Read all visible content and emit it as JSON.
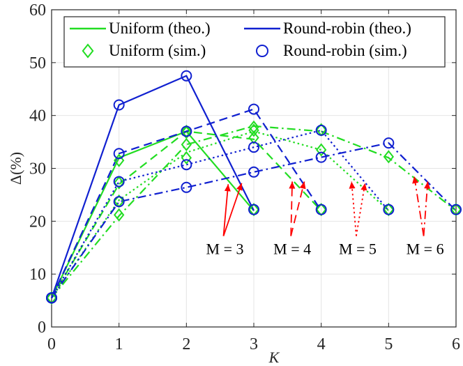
{
  "chart_data": {
    "type": "line",
    "xlabel": "K",
    "ylabel": "Δ(%)",
    "xlim": [
      0,
      6
    ],
    "ylim": [
      0,
      60
    ],
    "xticks": [
      "0",
      "1",
      "2",
      "3",
      "4",
      "5",
      "6"
    ],
    "yticks": [
      "0",
      "10",
      "20",
      "30",
      "40",
      "50",
      "60"
    ],
    "grid": true,
    "legend": {
      "placement": "top",
      "entries": [
        {
          "label": "Uniform (theo.)",
          "kind": "line",
          "color": "#22dd22"
        },
        {
          "label": "Round-robin (theo.)",
          "kind": "line",
          "color": "#1020d0"
        },
        {
          "label": "Uniform (sim.)",
          "kind": "diamond",
          "color": "#22dd22"
        },
        {
          "label": "Round-robin (sim.)",
          "kind": "circle",
          "color": "#1020d0"
        }
      ]
    },
    "series": [
      {
        "family": "uniform",
        "M": 3,
        "dash": "solid",
        "x": [
          0,
          1,
          2,
          3
        ],
        "theo": [
          5.5,
          32.0,
          37.0,
          22.0
        ],
        "sim": [
          5.5,
          31.5,
          36.8,
          22.2
        ]
      },
      {
        "family": "uniform",
        "M": 4,
        "dash": "dashed",
        "x": [
          0,
          1,
          2,
          3,
          4
        ],
        "theo": [
          5.5,
          27.0,
          37.0,
          35.5,
          22.0
        ],
        "sim": [
          5.5,
          27.3,
          37.0,
          35.8,
          22.2
        ]
      },
      {
        "family": "uniform",
        "M": 5,
        "dash": "dotted",
        "x": [
          0,
          1,
          2,
          3,
          4,
          5
        ],
        "theo": [
          5.5,
          24.0,
          33.0,
          37.0,
          33.5,
          22.0
        ],
        "sim": [
          5.5,
          23.8,
          32.0,
          37.2,
          33.5,
          22.2
        ]
      },
      {
        "family": "uniform",
        "M": 6,
        "dash": "dashdot",
        "x": [
          0,
          1,
          2,
          3,
          4,
          5,
          6
        ],
        "theo": [
          5.5,
          21.0,
          34.5,
          38.0,
          37.0,
          32.0,
          22.0
        ],
        "sim": [
          5.5,
          21.2,
          34.5,
          37.8,
          37.3,
          32.2,
          22.2
        ]
      },
      {
        "family": "round-robin",
        "M": 3,
        "dash": "solid",
        "x": [
          0,
          1,
          2,
          3
        ],
        "theo": [
          5.5,
          42.0,
          47.5,
          22.0
        ],
        "sim": [
          5.5,
          42.0,
          47.5,
          22.2
        ]
      },
      {
        "family": "round-robin",
        "M": 4,
        "dash": "dashed",
        "x": [
          0,
          1,
          2,
          3,
          4
        ],
        "theo": [
          5.5,
          32.8,
          37.0,
          41.2,
          22.0
        ],
        "sim": [
          5.5,
          32.8,
          37.0,
          41.2,
          22.2
        ]
      },
      {
        "family": "round-robin",
        "M": 5,
        "dash": "dotted",
        "x": [
          0,
          1,
          2,
          3,
          4,
          5
        ],
        "theo": [
          5.5,
          27.5,
          30.7,
          34.0,
          37.2,
          22.0
        ],
        "sim": [
          5.5,
          27.5,
          30.7,
          34.0,
          37.2,
          22.2
        ]
      },
      {
        "family": "round-robin",
        "M": 6,
        "dash": "dashdot",
        "x": [
          0,
          1,
          2,
          3,
          4,
          5,
          6
        ],
        "theo": [
          5.5,
          23.7,
          26.4,
          29.3,
          32.1,
          34.8,
          22.0
        ],
        "sim": [
          5.5,
          23.7,
          26.4,
          29.3,
          32.1,
          34.8,
          22.2
        ]
      }
    ],
    "annotations": [
      {
        "label": "M = 3",
        "dash": "solid",
        "tail": [
          2.55,
          17.2
        ],
        "heads": [
          [
            2.62,
            27.0
          ],
          [
            2.82,
            27.2
          ]
        ]
      },
      {
        "label": "M = 4",
        "dash": "dashed",
        "tail": [
          3.55,
          17.2
        ],
        "heads": [
          [
            3.57,
            27.5
          ],
          [
            3.75,
            27.5
          ]
        ]
      },
      {
        "label": "M = 5",
        "dash": "dotted",
        "tail": [
          4.52,
          17.2
        ],
        "heads": [
          [
            4.45,
            27.5
          ],
          [
            4.65,
            27.2
          ]
        ]
      },
      {
        "label": "M = 6",
        "dash": "dashdot",
        "tail": [
          5.52,
          17.2
        ],
        "heads": [
          [
            5.38,
            28.5
          ],
          [
            5.58,
            27.5
          ]
        ]
      }
    ],
    "colors": {
      "uniform": "#22dd22",
      "round_robin": "#1020d0",
      "arrow": "#ff0000",
      "grid": "#e4e4e4",
      "axis": "#262626"
    }
  }
}
